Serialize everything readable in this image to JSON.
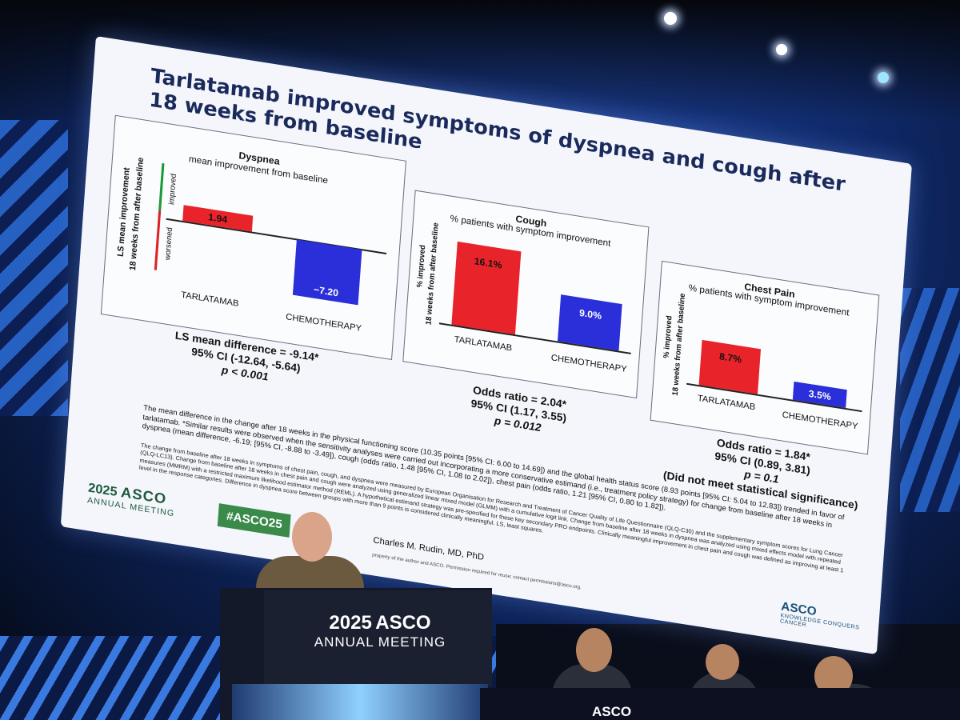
{
  "slide": {
    "title": "Tarlatamab improved symptoms of dyspnea and cough after 18 weeks from baseline",
    "dyspnea": {
      "title": "Dyspnea",
      "subtitle": "mean improvement from baseline",
      "ylabel_line1": "LS mean improvement",
      "ylabel_line2": "18 weeks from after baseline",
      "improved": "improved",
      "worsened": "worsened",
      "bars": [
        {
          "label": "TARLATAMAB",
          "value": "1.94",
          "color": "#e8242a"
        },
        {
          "label": "CHEMOTHERAPY",
          "value": "−7.20",
          "color": "#2b2fd9"
        }
      ],
      "stat1": "LS mean difference = -9.14*",
      "stat2": "95% CI (-12.64, -5.64)",
      "stat3": "p < 0.001"
    },
    "cough": {
      "title": "Cough",
      "subtitle": "% patients with symptom improvement",
      "ylabel_line1": "% improved",
      "ylabel_line2": "18 weeks from after baseline",
      "bars": [
        {
          "label": "TARLATAMAB",
          "value": "16.1%",
          "color": "#e8242a"
        },
        {
          "label": "CHEMOTHERAPY",
          "value": "9.0%",
          "color": "#2b2fd9"
        }
      ],
      "stat1": "Odds ratio = 2.04*",
      "stat2": "95% CI (1.17, 3.55)",
      "stat3": "p = 0.012"
    },
    "chest": {
      "title": "Chest Pain",
      "subtitle": "% patients with symptom improvement",
      "ylabel_line1": "% improved",
      "ylabel_line2": "18 weeks from after baseline",
      "bars": [
        {
          "label": "TARLATAMAB",
          "value": "8.7%",
          "color": "#e8242a"
        },
        {
          "label": "CHEMOTHERAPY",
          "value": "3.5%",
          "color": "#2b2fd9"
        }
      ],
      "stat1": "Odds ratio = 1.84*",
      "stat2": "95% CI (0.89, 3.81)",
      "stat3": "p = 0.1",
      "stat4": "(Did not meet statistical significance)"
    },
    "footnote1": "The mean difference in the change after 18 weeks in the physical functioning score (10.35 points [95% CI: 6.00 to 14.69]) and the global health status score (8.93 points [95% CI: 5.04 to 12.83]) trended in favor of tarlatamab. *Similar results were observed when the sensitivity analyses were carried out incorporating a more conservative estimand (i.e., treatment policy strategy) for change from baseline after 18 weeks in dyspnea (mean difference, -6.19; [95% CI, -8.88 to -3.49]), cough (odds ratio, 1.48 [95% CI, 1.08 to 2.02]), chest pain (odds ratio, 1.21 [95% CI, 0.80 to 1.82]).",
    "footnote2": "The change from baseline after 18 weeks in symptoms of chest pain, cough, and dyspnea were measured by European Organisation for Research and Treatment of Cancer Quality of Life Questionnaire (QLQ-C30) and the supplementary symptom scores for Lung Cancer (QLQ-LC13). Change from baseline after 18 weeks in chest pain and cough were analyzed using generalized linear mixed model (GLMM) with a cumulative logit link. Change from baseline after 18 weeks in dyspnea was analyzed using mixed effects model with repeated measures (MMRM) with a restricted maximum likelihood estimator method (REML). A hypothetical estimand strategy was pre-specified for these key secondary PRO endpoints. Clinically meaningful improvement in chest pain and cough was defined as improving at least 1 level in the response categories. Difference in dyspnea score between groups with more than 9 points is considered clinically meaningful. LS, least squares.",
    "logo_year": "2025",
    "logo_name": "ASCO",
    "logo_sub": "ANNUAL MEETING",
    "hashtag": "#ASCO25",
    "speaker": "Charles M. Rudin, MD, PhD",
    "permission": "property of the author and ASCO. Permission required for reuse; contact permissions@asco.org.",
    "corner_logo": "ASCO",
    "corner_tag": "KNOWLEDGE CONQUERS CANCER"
  },
  "podium": {
    "year": "2025",
    "name": "ASCO",
    "sub": "ANNUAL MEETING"
  },
  "table_text": "ASCO"
}
